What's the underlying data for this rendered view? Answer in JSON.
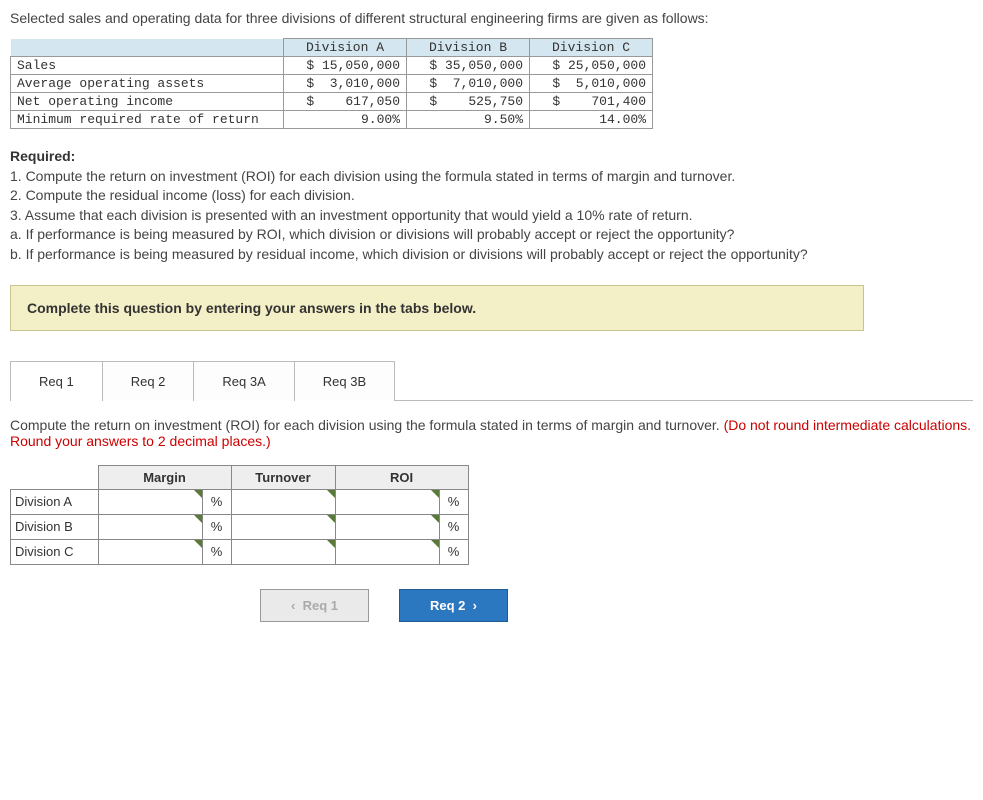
{
  "intro": "Selected sales and operating data for three divisions of different structural engineering firms are given as follows:",
  "dataTable": {
    "headers": [
      "",
      "Division A",
      "Division B",
      "Division C"
    ],
    "rows": [
      {
        "label": "Sales",
        "a": "$ 15,050,000",
        "b": "$ 35,050,000",
        "c": "$ 25,050,000"
      },
      {
        "label": "Average operating assets",
        "a": "$  3,010,000",
        "b": "$  7,010,000",
        "c": "$  5,010,000"
      },
      {
        "label": "Net operating income",
        "a": "$    617,050",
        "b": "$    525,750",
        "c": "$    701,400"
      },
      {
        "label": "Minimum required rate of return",
        "a": "9.00%",
        "b": "9.50%",
        "c": "14.00%"
      }
    ]
  },
  "required": {
    "header": "Required:",
    "lines": [
      "1. Compute the return on investment (ROI) for each division using the formula stated in terms of margin and turnover.",
      "2. Compute the residual income (loss) for each division.",
      "3. Assume that each division is presented with an investment opportunity that would yield a 10% rate of return.",
      "a. If performance is being measured by ROI, which division or divisions will probably accept or reject the opportunity?",
      "b. If performance is being measured by residual income, which division or divisions will probably accept or reject the opportunity?"
    ]
  },
  "instructionBox": "Complete this question by entering your answers in the tabs below.",
  "tabs": [
    "Req 1",
    "Req 2",
    "Req 3A",
    "Req 3B"
  ],
  "tabInstruction": {
    "main": "Compute the return on investment (ROI) for each division using the formula stated in terms of margin and turnover. ",
    "red": "(Do not round intermediate calculations. Round your answers to 2 decimal places.)"
  },
  "answerTable": {
    "cols": [
      "Margin",
      "Turnover",
      "ROI"
    ],
    "rows": [
      "Division A",
      "Division B",
      "Division C"
    ],
    "pct": "%"
  },
  "nav": {
    "prev": "Req 1",
    "next": "Req 2"
  },
  "colors": {
    "headerBg": "#d4e6f0",
    "instructionBg": "#f3efc7",
    "nextBtn": "#2b77c0",
    "redText": "#c00"
  }
}
